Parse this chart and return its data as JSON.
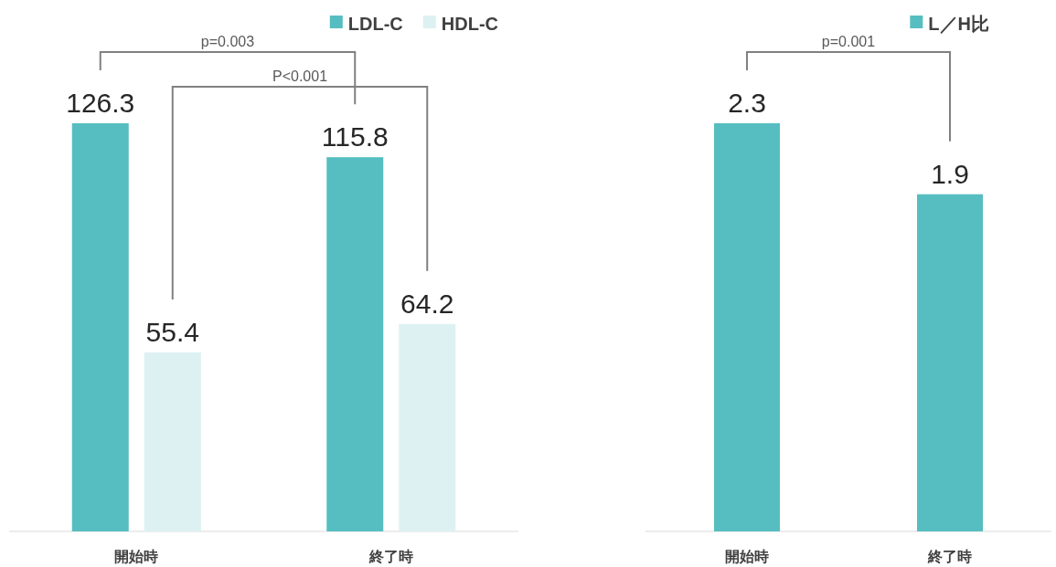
{
  "chart_data": [
    {
      "type": "bar",
      "categories": [
        "開始時",
        "終了時"
      ],
      "series": [
        {
          "name": "LDL-C",
          "color": "#56bec1",
          "values": [
            126.3,
            115.8
          ]
        },
        {
          "name": "HDL-C",
          "color": "#ddf1f2",
          "values": [
            55.4,
            64.2
          ]
        }
      ],
      "data_labels": true,
      "legend": "top right",
      "annotations": [
        "p=0.003",
        "P<0.001"
      ]
    },
    {
      "type": "bar",
      "categories": [
        "開始時",
        "終了時"
      ],
      "series": [
        {
          "name": "L／H比",
          "color": "#56bec1",
          "values": [
            2.3,
            1.9
          ]
        }
      ],
      "data_labels": true,
      "legend": "top right",
      "annotations": [
        "p=0.001"
      ]
    }
  ]
}
